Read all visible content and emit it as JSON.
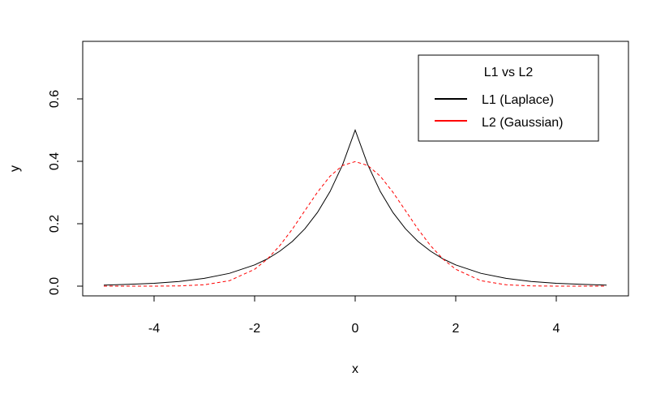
{
  "chart_data": {
    "type": "line",
    "title": "",
    "xlabel": "x",
    "ylabel": "y",
    "xlim": [
      -5,
      5
    ],
    "ylim": [
      0,
      0.75
    ],
    "x_ticks": [
      "-4",
      "-2",
      "0",
      "2",
      "4"
    ],
    "y_ticks": [
      "0.0",
      "0.2",
      "0.4",
      "0.6"
    ],
    "grid": false,
    "legend": {
      "title": "L1 vs L2",
      "placement": "top-right"
    },
    "x": [
      -5,
      -4.5,
      -4,
      -3.5,
      -3,
      -2.5,
      -2,
      -1.75,
      -1.5,
      -1.25,
      -1,
      -0.75,
      -0.5,
      -0.25,
      0,
      0.25,
      0.5,
      0.75,
      1,
      1.25,
      1.5,
      1.75,
      2,
      2.5,
      3,
      3.5,
      4,
      4.5,
      5
    ],
    "series": [
      {
        "name": "L1 (Laplace)",
        "color": "#000000",
        "line_style": "solid",
        "values": [
          0.003,
          0.006,
          0.009,
          0.015,
          0.025,
          0.041,
          0.068,
          0.087,
          0.112,
          0.143,
          0.184,
          0.236,
          0.303,
          0.389,
          0.5,
          0.389,
          0.303,
          0.236,
          0.184,
          0.143,
          0.112,
          0.087,
          0.068,
          0.041,
          0.025,
          0.015,
          0.009,
          0.006,
          0.003
        ]
      },
      {
        "name": "L2 (Gaussian)",
        "color": "#ff0000",
        "line_style": "dashed",
        "values": [
          0.0,
          0.0,
          0.0001,
          0.0009,
          0.0044,
          0.0175,
          0.054,
          0.0863,
          0.1295,
          0.1826,
          0.242,
          0.3011,
          0.3521,
          0.3867,
          0.3989,
          0.3867,
          0.3521,
          0.3011,
          0.242,
          0.1826,
          0.1295,
          0.0863,
          0.054,
          0.0175,
          0.0044,
          0.0009,
          0.0001,
          0.0,
          0.0
        ]
      }
    ]
  }
}
